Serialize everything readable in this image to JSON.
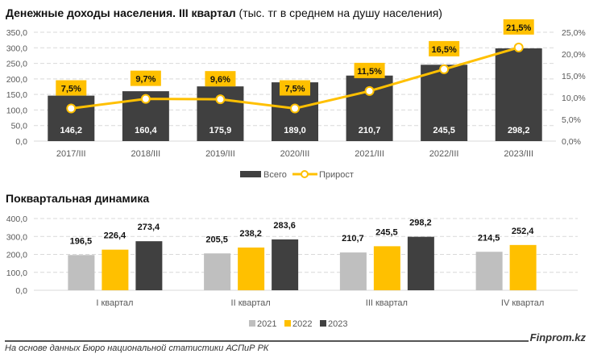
{
  "title1_bold": "Денежные доходы населения. III квартал",
  "title1_rest": " (тыс. тг в среднем на душу населения)",
  "title2": "Поквартальная динамика",
  "brand": "Finprom.kz",
  "source": "На основе данных Бюро национальной статистики АСПиР РК",
  "colors": {
    "dark": "#404040",
    "yellow": "#FFC000",
    "grey": "#BFBFBF"
  },
  "chart_data": [
    {
      "type": "bar+line",
      "categories": [
        "2017/III",
        "2018/III",
        "2019/III",
        "2020/III",
        "2021/III",
        "2022/III",
        "2023/III"
      ],
      "series": [
        {
          "name": "Всего",
          "type": "bar",
          "axis": "left",
          "values": [
            146.2,
            160.4,
            175.9,
            189.0,
            210.7,
            245.5,
            298.2
          ],
          "labels": [
            "146,2",
            "160,4",
            "175,9",
            "189,0",
            "210,7",
            "245,5",
            "298,2"
          ]
        },
        {
          "name": "Прирост",
          "type": "line",
          "axis": "right",
          "values": [
            7.5,
            9.7,
            9.6,
            7.5,
            11.5,
            16.5,
            21.5
          ],
          "labels": [
            "7,5%",
            "9,7%",
            "9,6%",
            "7,5%",
            "11,5%",
            "16,5%",
            "21,5%"
          ]
        }
      ],
      "ylim": [
        0,
        350
      ],
      "yticks": [
        "0,0",
        "50,0",
        "100,0",
        "150,0",
        "200,0",
        "250,0",
        "300,0",
        "350,0"
      ],
      "y2lim": [
        0,
        25
      ],
      "y2ticks": [
        "0,0%",
        "5,0%",
        "10,0%",
        "15,0%",
        "20,0%",
        "25,0%"
      ],
      "grid": true,
      "legend": "bottom"
    },
    {
      "type": "bar",
      "categories": [
        "I квартал",
        "II квартал",
        "III квартал",
        "IV квартал"
      ],
      "series": [
        {
          "name": "2021",
          "values": [
            196.5,
            205.5,
            210.7,
            214.5
          ],
          "labels": [
            "196,5",
            "205,5",
            "210,7",
            "214,5"
          ]
        },
        {
          "name": "2022",
          "values": [
            226.4,
            238.2,
            245.5,
            252.4
          ],
          "labels": [
            "226,4",
            "238,2",
            "245,5",
            "252,4"
          ]
        },
        {
          "name": "2023",
          "values": [
            273.4,
            283.6,
            298.2,
            null
          ],
          "labels": [
            "273,4",
            "283,6",
            "298,2",
            null
          ]
        }
      ],
      "ylim": [
        0,
        400
      ],
      "yticks": [
        "0,0",
        "100,0",
        "200,0",
        "300,0",
        "400,0"
      ],
      "grid": true,
      "legend": "bottom"
    }
  ]
}
